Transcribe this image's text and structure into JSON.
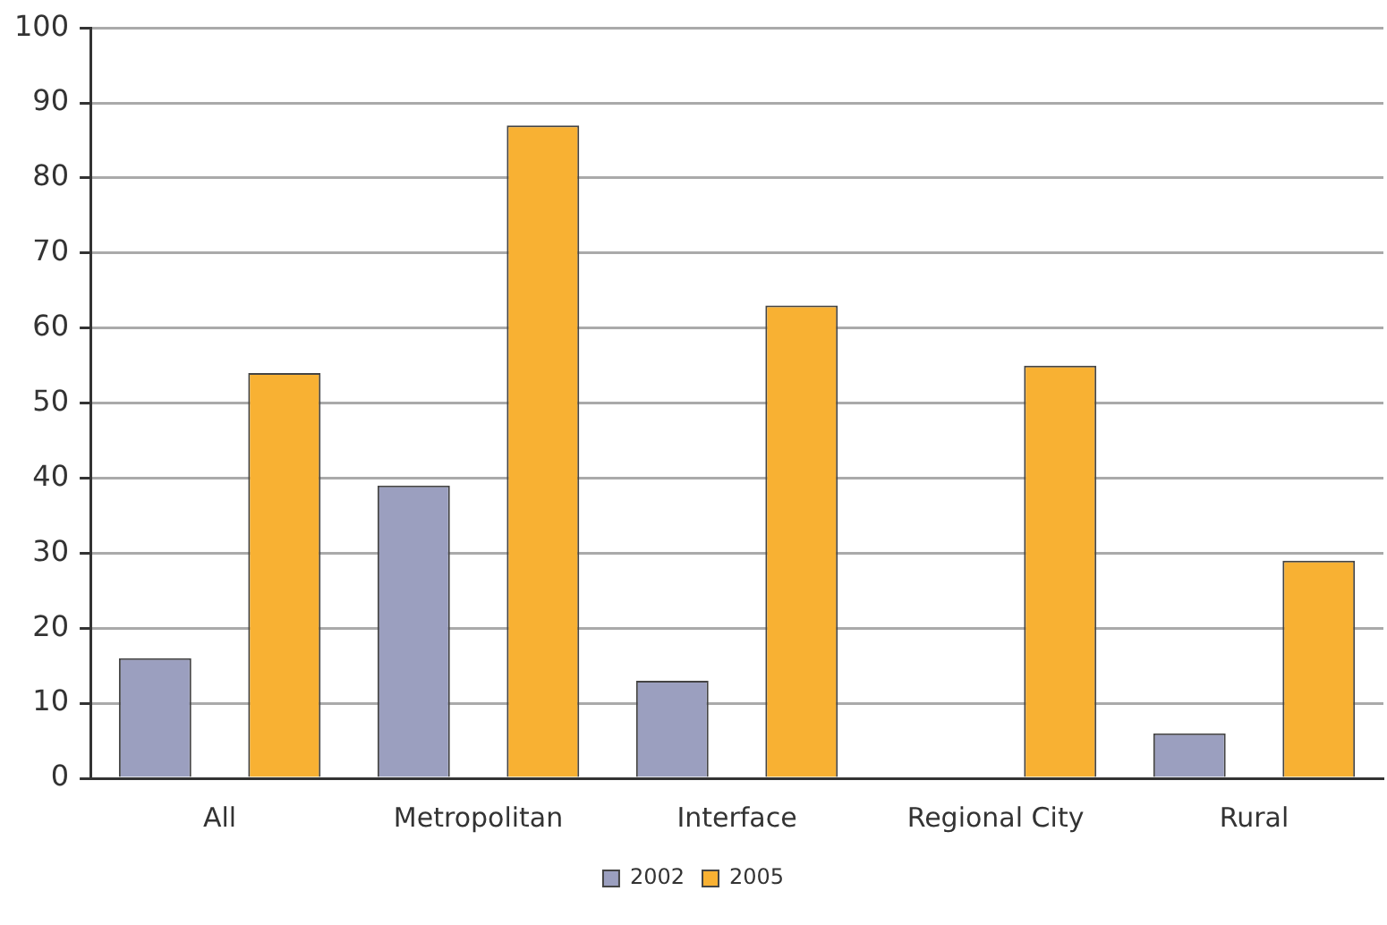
{
  "chart_data": {
    "type": "bar",
    "categories": [
      "All",
      "Metropolitan",
      "Interface",
      "Regional City",
      "Rural"
    ],
    "series": [
      {
        "name": "2002",
        "color": "#9b9fbf",
        "values": [
          16,
          39,
          13,
          null,
          6
        ]
      },
      {
        "name": "2005",
        "color": "#f8b133",
        "values": [
          54,
          87,
          63,
          55,
          29
        ]
      }
    ],
    "ylim": [
      0,
      100
    ],
    "yticks": [
      0,
      10,
      20,
      30,
      40,
      50,
      60,
      70,
      80,
      90,
      100
    ],
    "grid": "y",
    "legend": "bottom"
  }
}
